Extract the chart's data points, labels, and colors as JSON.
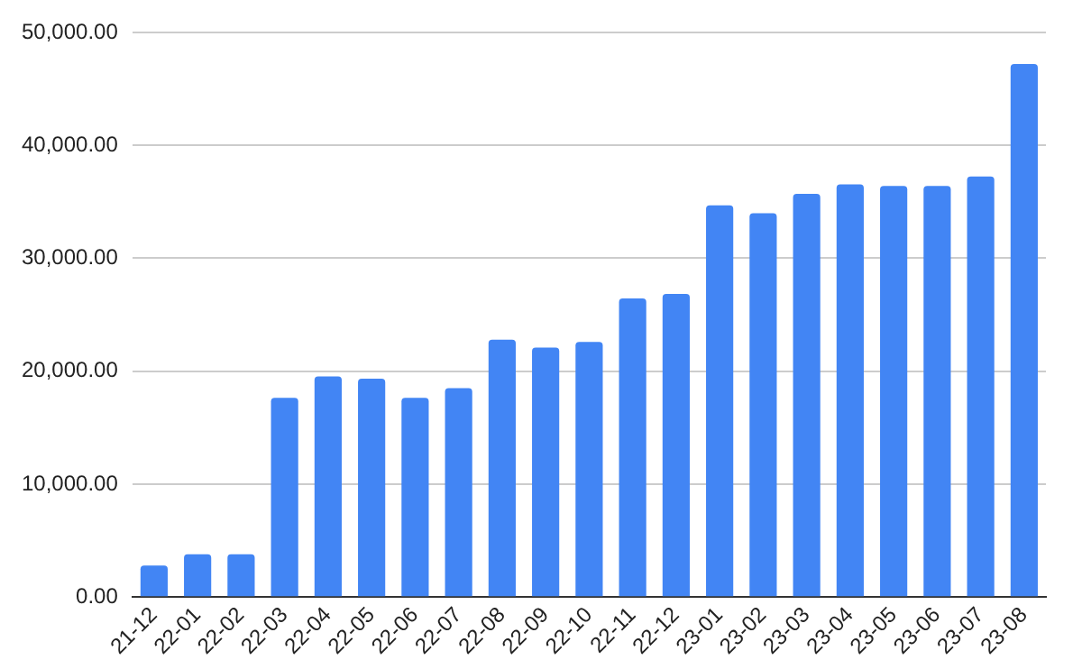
{
  "chart_data": {
    "type": "bar",
    "categories": [
      "21-12",
      "22-01",
      "22-02",
      "22-03",
      "22-04",
      "22-05",
      "22-06",
      "22-07",
      "22-08",
      "22-09",
      "22-10",
      "22-11",
      "22-12",
      "23-01",
      "23-02",
      "23-03",
      "23-04",
      "23-05",
      "23-06",
      "23-07",
      "23-08"
    ],
    "values": [
      2800,
      3800,
      3800,
      17650,
      19550,
      19350,
      17650,
      18500,
      22800,
      22100,
      22600,
      26450,
      26850,
      34700,
      34000,
      35700,
      36550,
      36400,
      36400,
      37250,
      47200
    ],
    "color": "#4285f4",
    "ylim": [
      0,
      50000
    ],
    "yticks": [
      {
        "value": 0,
        "label": "0.00"
      },
      {
        "value": 10000,
        "label": "10,000.00"
      },
      {
        "value": 20000,
        "label": "20,000.00"
      },
      {
        "value": 30000,
        "label": "30,000.00"
      },
      {
        "value": 40000,
        "label": "40,000.00"
      },
      {
        "value": 50000,
        "label": "50,000.00"
      }
    ],
    "grid": "y"
  }
}
